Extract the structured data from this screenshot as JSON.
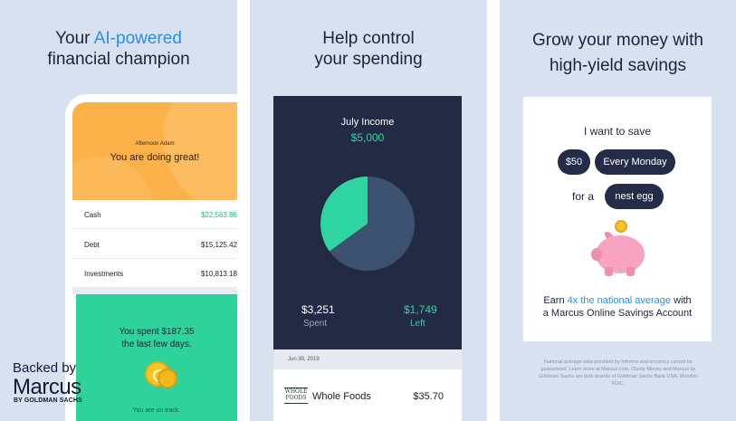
{
  "panel1": {
    "headline_pre": "Your ",
    "headline_accent": "AI-powered",
    "headline_post": "financial champion",
    "greeting_small": "Afternoon Adam",
    "greeting_big": "You are doing great!",
    "accounts": [
      {
        "label": "Cash",
        "value": "$22,563.86"
      },
      {
        "label": "Debt",
        "value": "$15,125.42"
      },
      {
        "label": "Investments",
        "value": "$10,813.18"
      }
    ],
    "spent_line1": "You spent $187.35",
    "spent_line2": "the last few days.",
    "on_track": "You are on track.",
    "backed_by": "Backed by",
    "brand": "Marcus",
    "brand_sub": "BY GOLDMAN SACHS"
  },
  "panel2": {
    "headline_line1": "Help control",
    "headline_line2": "your spending",
    "income_title": "July Income",
    "income_value": "$5,000",
    "spent_value": "$3,251",
    "spent_label": "Spent",
    "left_value": "$1,749",
    "left_label": "Left",
    "date": "Jun 30, 2019",
    "merchant": "Whole Foods",
    "merchant_logo": "WHOLE FOODS",
    "amount": "$35.70"
  },
  "panel3": {
    "headline_line1": "Grow your money with",
    "headline_line2": "high-yield savings",
    "want_save": "I want to save",
    "pill_amount": "$50",
    "pill_freq": "Every Monday",
    "for_a": "for a",
    "pill_goal": "nest egg",
    "earn_pre": "Earn ",
    "earn_accent": "4x the national average",
    "earn_post": " with",
    "earn_line2": "a Marcus Online Savings Account",
    "fine_print": "National average data provided by Informa and accuracy cannot be guaranteed. Learn more at Marcus.com. Clarity Money and Marcus by Goldman Sachs are both brands of Goldman Sachs Bank USA. Member FDIC."
  },
  "chart_data": {
    "type": "pie",
    "categories": [
      "Spent",
      "Left"
    ],
    "values": [
      3251,
      1749
    ],
    "colors": [
      "#3d5170",
      "#2fd6a0"
    ]
  },
  "colors": {
    "background": "#d8e1ef",
    "accent_blue": "#2d8ee6",
    "teal": "#2dd39a",
    "orange": "#fcb248",
    "navy": "#232a43"
  }
}
